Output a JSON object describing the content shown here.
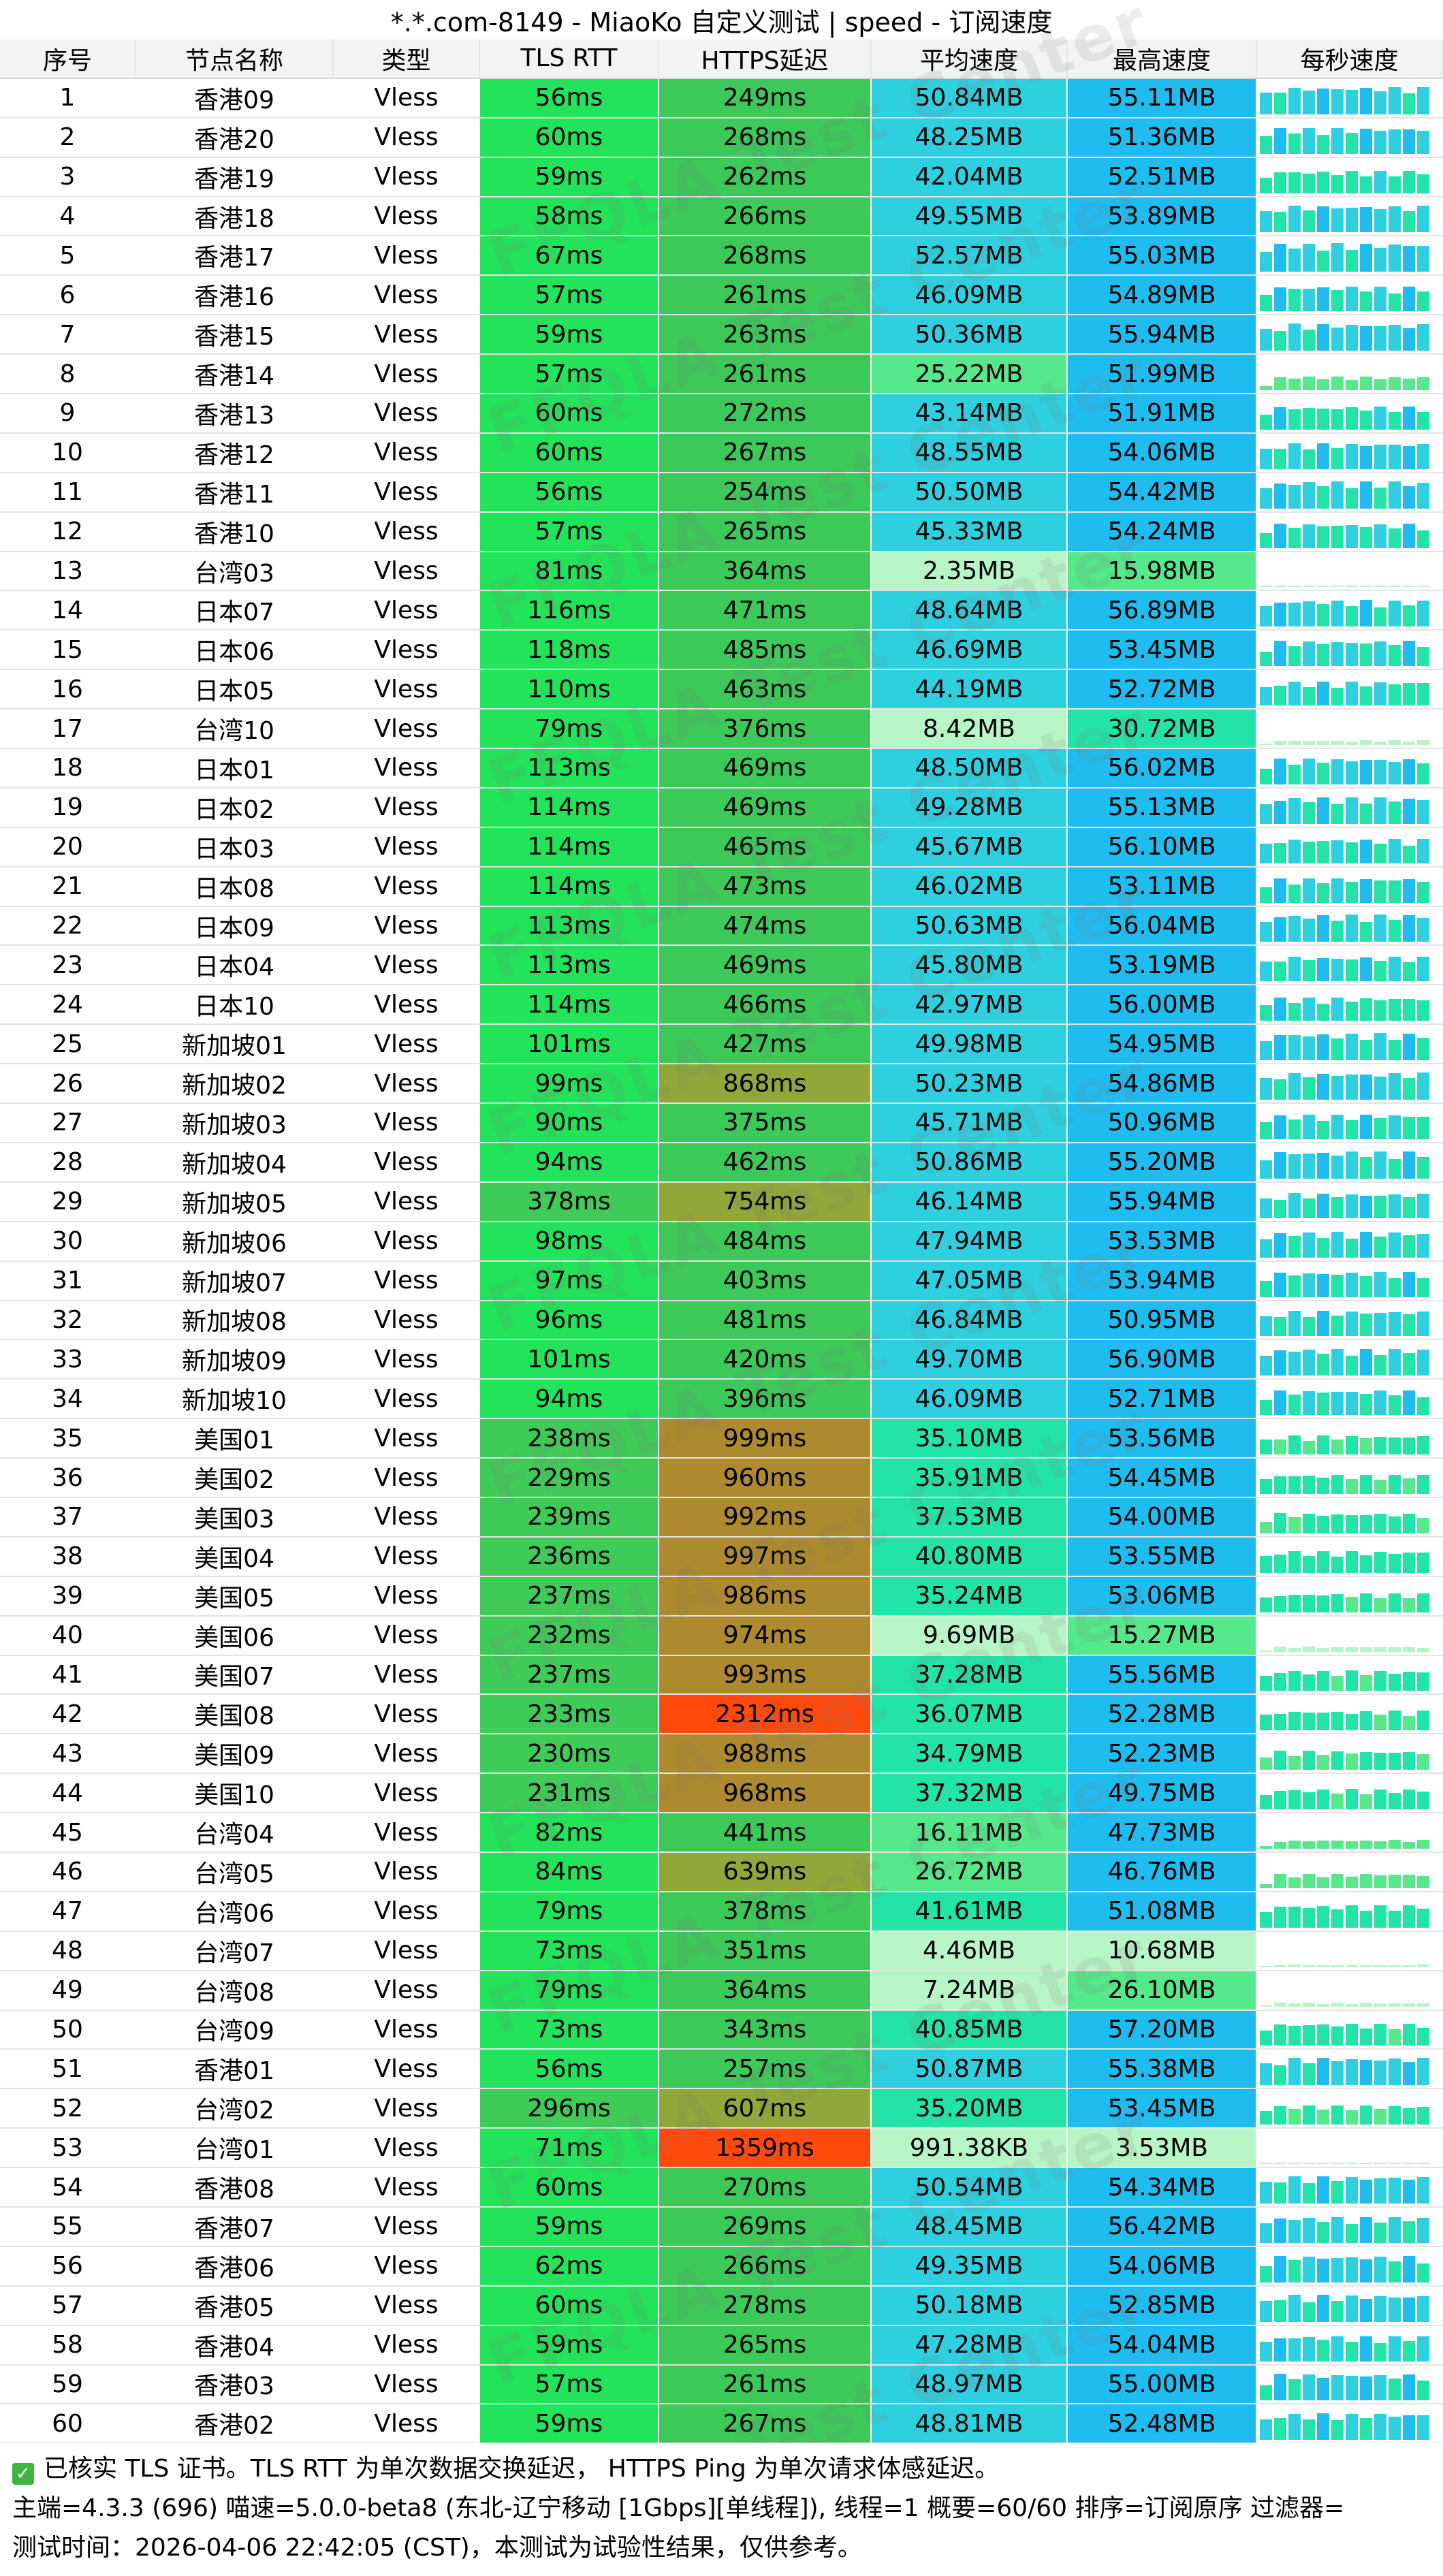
{
  "window": {
    "title": "*.*.com-8149 - MiaoKo 自定义测试 | speed - 订阅速度"
  },
  "columns": [
    "序号",
    "节点名称",
    "类型",
    "TLS RTT",
    "HTTPS延迟",
    "平均速度",
    "最高速度",
    "每秒速度"
  ],
  "rows": [
    {
      "idx": "1",
      "name": "香港09",
      "type": "Vless",
      "tls": "56ms",
      "https": "249ms",
      "avg": "50.84MB",
      "max": "55.11MB"
    },
    {
      "idx": "2",
      "name": "香港20",
      "type": "Vless",
      "tls": "60ms",
      "https": "268ms",
      "avg": "48.25MB",
      "max": "51.36MB"
    },
    {
      "idx": "3",
      "name": "香港19",
      "type": "Vless",
      "tls": "59ms",
      "https": "262ms",
      "avg": "42.04MB",
      "max": "52.51MB"
    },
    {
      "idx": "4",
      "name": "香港18",
      "type": "Vless",
      "tls": "58ms",
      "https": "266ms",
      "avg": "49.55MB",
      "max": "53.89MB"
    },
    {
      "idx": "5",
      "name": "香港17",
      "type": "Vless",
      "tls": "67ms",
      "https": "268ms",
      "avg": "52.57MB",
      "max": "55.03MB"
    },
    {
      "idx": "6",
      "name": "香港16",
      "type": "Vless",
      "tls": "57ms",
      "https": "261ms",
      "avg": "46.09MB",
      "max": "54.89MB"
    },
    {
      "idx": "7",
      "name": "香港15",
      "type": "Vless",
      "tls": "59ms",
      "https": "263ms",
      "avg": "50.36MB",
      "max": "55.94MB"
    },
    {
      "idx": "8",
      "name": "香港14",
      "type": "Vless",
      "tls": "57ms",
      "https": "261ms",
      "avg": "25.22MB",
      "max": "51.99MB"
    },
    {
      "idx": "9",
      "name": "香港13",
      "type": "Vless",
      "tls": "60ms",
      "https": "272ms",
      "avg": "43.14MB",
      "max": "51.91MB"
    },
    {
      "idx": "10",
      "name": "香港12",
      "type": "Vless",
      "tls": "60ms",
      "https": "267ms",
      "avg": "48.55MB",
      "max": "54.06MB"
    },
    {
      "idx": "11",
      "name": "香港11",
      "type": "Vless",
      "tls": "56ms",
      "https": "254ms",
      "avg": "50.50MB",
      "max": "54.42MB"
    },
    {
      "idx": "12",
      "name": "香港10",
      "type": "Vless",
      "tls": "57ms",
      "https": "265ms",
      "avg": "45.33MB",
      "max": "54.24MB"
    },
    {
      "idx": "13",
      "name": "台湾03",
      "type": "Vless",
      "tls": "81ms",
      "https": "364ms",
      "avg": "2.35MB",
      "max": "15.98MB"
    },
    {
      "idx": "14",
      "name": "日本07",
      "type": "Vless",
      "tls": "116ms",
      "https": "471ms",
      "avg": "48.64MB",
      "max": "56.89MB"
    },
    {
      "idx": "15",
      "name": "日本06",
      "type": "Vless",
      "tls": "118ms",
      "https": "485ms",
      "avg": "46.69MB",
      "max": "53.45MB"
    },
    {
      "idx": "16",
      "name": "日本05",
      "type": "Vless",
      "tls": "110ms",
      "https": "463ms",
      "avg": "44.19MB",
      "max": "52.72MB"
    },
    {
      "idx": "17",
      "name": "台湾10",
      "type": "Vless",
      "tls": "79ms",
      "https": "376ms",
      "avg": "8.42MB",
      "max": "30.72MB"
    },
    {
      "idx": "18",
      "name": "日本01",
      "type": "Vless",
      "tls": "113ms",
      "https": "469ms",
      "avg": "48.50MB",
      "max": "56.02MB"
    },
    {
      "idx": "19",
      "name": "日本02",
      "type": "Vless",
      "tls": "114ms",
      "https": "469ms",
      "avg": "49.28MB",
      "max": "55.13MB"
    },
    {
      "idx": "20",
      "name": "日本03",
      "type": "Vless",
      "tls": "114ms",
      "https": "465ms",
      "avg": "45.67MB",
      "max": "56.10MB"
    },
    {
      "idx": "21",
      "name": "日本08",
      "type": "Vless",
      "tls": "114ms",
      "https": "473ms",
      "avg": "46.02MB",
      "max": "53.11MB"
    },
    {
      "idx": "22",
      "name": "日本09",
      "type": "Vless",
      "tls": "113ms",
      "https": "474ms",
      "avg": "50.63MB",
      "max": "56.04MB"
    },
    {
      "idx": "23",
      "name": "日本04",
      "type": "Vless",
      "tls": "113ms",
      "https": "469ms",
      "avg": "45.80MB",
      "max": "53.19MB"
    },
    {
      "idx": "24",
      "name": "日本10",
      "type": "Vless",
      "tls": "114ms",
      "https": "466ms",
      "avg": "42.97MB",
      "max": "56.00MB"
    },
    {
      "idx": "25",
      "name": "新加坡01",
      "type": "Vless",
      "tls": "101ms",
      "https": "427ms",
      "avg": "49.98MB",
      "max": "54.95MB"
    },
    {
      "idx": "26",
      "name": "新加坡02",
      "type": "Vless",
      "tls": "99ms",
      "https": "868ms",
      "avg": "50.23MB",
      "max": "54.86MB"
    },
    {
      "idx": "27",
      "name": "新加坡03",
      "type": "Vless",
      "tls": "90ms",
      "https": "375ms",
      "avg": "45.71MB",
      "max": "50.96MB"
    },
    {
      "idx": "28",
      "name": "新加坡04",
      "type": "Vless",
      "tls": "94ms",
      "https": "462ms",
      "avg": "50.86MB",
      "max": "55.20MB"
    },
    {
      "idx": "29",
      "name": "新加坡05",
      "type": "Vless",
      "tls": "378ms",
      "https": "754ms",
      "avg": "46.14MB",
      "max": "55.94MB"
    },
    {
      "idx": "30",
      "name": "新加坡06",
      "type": "Vless",
      "tls": "98ms",
      "https": "484ms",
      "avg": "47.94MB",
      "max": "53.53MB"
    },
    {
      "idx": "31",
      "name": "新加坡07",
      "type": "Vless",
      "tls": "97ms",
      "https": "403ms",
      "avg": "47.05MB",
      "max": "53.94MB"
    },
    {
      "idx": "32",
      "name": "新加坡08",
      "type": "Vless",
      "tls": "96ms",
      "https": "481ms",
      "avg": "46.84MB",
      "max": "50.95MB"
    },
    {
      "idx": "33",
      "name": "新加坡09",
      "type": "Vless",
      "tls": "101ms",
      "https": "420ms",
      "avg": "49.70MB",
      "max": "56.90MB"
    },
    {
      "idx": "34",
      "name": "新加坡10",
      "type": "Vless",
      "tls": "94ms",
      "https": "396ms",
      "avg": "46.09MB",
      "max": "52.71MB"
    },
    {
      "idx": "35",
      "name": "美国01",
      "type": "Vless",
      "tls": "238ms",
      "https": "999ms",
      "avg": "35.10MB",
      "max": "53.56MB"
    },
    {
      "idx": "36",
      "name": "美国02",
      "type": "Vless",
      "tls": "229ms",
      "https": "960ms",
      "avg": "35.91MB",
      "max": "54.45MB"
    },
    {
      "idx": "37",
      "name": "美国03",
      "type": "Vless",
      "tls": "239ms",
      "https": "992ms",
      "avg": "37.53MB",
      "max": "54.00MB"
    },
    {
      "idx": "38",
      "name": "美国04",
      "type": "Vless",
      "tls": "236ms",
      "https": "997ms",
      "avg": "40.80MB",
      "max": "53.55MB"
    },
    {
      "idx": "39",
      "name": "美国05",
      "type": "Vless",
      "tls": "237ms",
      "https": "986ms",
      "avg": "35.24MB",
      "max": "53.06MB"
    },
    {
      "idx": "40",
      "name": "美国06",
      "type": "Vless",
      "tls": "232ms",
      "https": "974ms",
      "avg": "9.69MB",
      "max": "15.27MB"
    },
    {
      "idx": "41",
      "name": "美国07",
      "type": "Vless",
      "tls": "237ms",
      "https": "993ms",
      "avg": "37.28MB",
      "max": "55.56MB"
    },
    {
      "idx": "42",
      "name": "美国08",
      "type": "Vless",
      "tls": "233ms",
      "https": "2312ms",
      "avg": "36.07MB",
      "max": "52.28MB"
    },
    {
      "idx": "43",
      "name": "美国09",
      "type": "Vless",
      "tls": "230ms",
      "https": "988ms",
      "avg": "34.79MB",
      "max": "52.23MB"
    },
    {
      "idx": "44",
      "name": "美国10",
      "type": "Vless",
      "tls": "231ms",
      "https": "968ms",
      "avg": "37.32MB",
      "max": "49.75MB"
    },
    {
      "idx": "45",
      "name": "台湾04",
      "type": "Vless",
      "tls": "82ms",
      "https": "441ms",
      "avg": "16.11MB",
      "max": "47.73MB"
    },
    {
      "idx": "46",
      "name": "台湾05",
      "type": "Vless",
      "tls": "84ms",
      "https": "639ms",
      "avg": "26.72MB",
      "max": "46.76MB"
    },
    {
      "idx": "47",
      "name": "台湾06",
      "type": "Vless",
      "tls": "79ms",
      "https": "378ms",
      "avg": "41.61MB",
      "max": "51.08MB"
    },
    {
      "idx": "48",
      "name": "台湾07",
      "type": "Vless",
      "tls": "73ms",
      "https": "351ms",
      "avg": "4.46MB",
      "max": "10.68MB"
    },
    {
      "idx": "49",
      "name": "台湾08",
      "type": "Vless",
      "tls": "79ms",
      "https": "364ms",
      "avg": "7.24MB",
      "max": "26.10MB"
    },
    {
      "idx": "50",
      "name": "台湾09",
      "type": "Vless",
      "tls": "73ms",
      "https": "343ms",
      "avg": "40.85MB",
      "max": "57.20MB"
    },
    {
      "idx": "51",
      "name": "香港01",
      "type": "Vless",
      "tls": "56ms",
      "https": "257ms",
      "avg": "50.87MB",
      "max": "55.38MB"
    },
    {
      "idx": "52",
      "name": "台湾02",
      "type": "Vless",
      "tls": "296ms",
      "https": "607ms",
      "avg": "35.20MB",
      "max": "53.45MB"
    },
    {
      "idx": "53",
      "name": "台湾01",
      "type": "Vless",
      "tls": "71ms",
      "https": "1359ms",
      "avg": "991.38KB",
      "max": "3.53MB"
    },
    {
      "idx": "54",
      "name": "香港08",
      "type": "Vless",
      "tls": "60ms",
      "https": "270ms",
      "avg": "50.54MB",
      "max": "54.34MB"
    },
    {
      "idx": "55",
      "name": "香港07",
      "type": "Vless",
      "tls": "59ms",
      "https": "269ms",
      "avg": "48.45MB",
      "max": "56.42MB"
    },
    {
      "idx": "56",
      "name": "香港06",
      "type": "Vless",
      "tls": "62ms",
      "https": "266ms",
      "avg": "49.35MB",
      "max": "54.06MB"
    },
    {
      "idx": "57",
      "name": "香港05",
      "type": "Vless",
      "tls": "60ms",
      "https": "278ms",
      "avg": "50.18MB",
      "max": "52.85MB"
    },
    {
      "idx": "58",
      "name": "香港04",
      "type": "Vless",
      "tls": "59ms",
      "https": "265ms",
      "avg": "47.28MB",
      "max": "54.04MB"
    },
    {
      "idx": "59",
      "name": "香港03",
      "type": "Vless",
      "tls": "57ms",
      "https": "261ms",
      "avg": "48.97MB",
      "max": "55.00MB"
    },
    {
      "idx": "60",
      "name": "香港02",
      "type": "Vless",
      "tls": "59ms",
      "https": "267ms",
      "avg": "48.81MB",
      "max": "52.48MB"
    }
  ],
  "footer": {
    "line1": "已核实 TLS 证书。TLS RTT 为单次数据交换延迟， HTTPS Ping 为单次请求体感延迟。",
    "line2": "主端=4.3.3 (696) 喵速=5.0.0-beta8 (东北-辽宁移动 [1Gbps][单线程]), 线程=1 概要=60/60 排序=订阅原序 过滤器=",
    "line3": "测试时间：2026-04-06 22:42:05 (CST)，本测试为试验性结果，仅供参考。"
  },
  "watermark": {
    "text": "FFQLA Test Center"
  },
  "icons": {
    "footer_check": "check-icon"
  },
  "colors": {
    "tls_fast": "#22e35a",
    "tls_slow": "#3ecb58",
    "https_normal": "#3cc95a",
    "https_high": "#8fa839",
    "https_very_high": "#ad8a2d",
    "https_extreme": "#ff4a0e",
    "speed_high": "#2ed0e0",
    "speed_max": "#1fbcf0",
    "speed_low": "#b8f5c6",
    "check": "#3fb33f"
  }
}
